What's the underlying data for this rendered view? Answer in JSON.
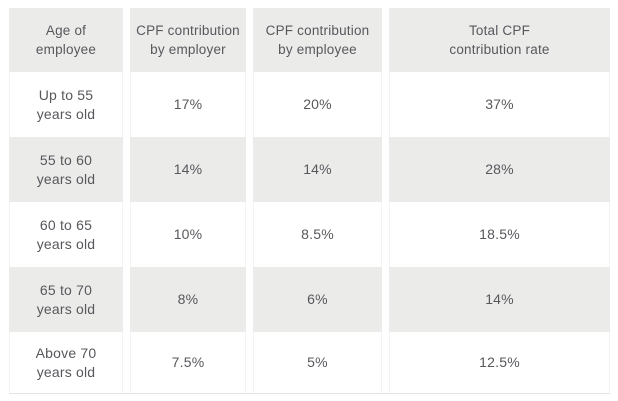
{
  "colors": {
    "page_background": "#ffffff",
    "cell_gray": "#ebebea",
    "text": "#57585c",
    "white_cell_border": "#f3f3f2",
    "table_bottom_border": "#e4e4e3"
  },
  "table": {
    "headers": [
      {
        "line1": "Age of",
        "line2": "employee"
      },
      {
        "line1": "CPF contribution",
        "line2": "by employer"
      },
      {
        "line1": "CPF contribution",
        "line2": "by employee"
      },
      {
        "line1": "Total CPF",
        "line2": "contribution rate"
      }
    ],
    "rows": [
      {
        "age1": "Up to 55",
        "age2": "years old",
        "employer": "17%",
        "employee": "20%",
        "total": "37%"
      },
      {
        "age1": "55 to 60",
        "age2": "years old",
        "employer": "14%",
        "employee": "14%",
        "total": "28%"
      },
      {
        "age1": "60 to 65",
        "age2": "years old",
        "employer": "10%",
        "employee": "8.5%",
        "total": "18.5%"
      },
      {
        "age1": "65 to 70",
        "age2": "years old",
        "employer": "8%",
        "employee": "6%",
        "total": "14%"
      },
      {
        "age1": "Above 70",
        "age2": "years old",
        "employer": "7.5%",
        "employee": "5%",
        "total": "12.5%"
      }
    ]
  },
  "chart_data": {
    "type": "table",
    "columns": [
      "Age of employee",
      "CPF contribution by employer",
      "CPF contribution by employee",
      "Total CPF contribution rate"
    ],
    "rows": [
      [
        "Up to 55 years old",
        "17%",
        "20%",
        "37%"
      ],
      [
        "55 to 60 years old",
        "14%",
        "14%",
        "28%"
      ],
      [
        "60 to 65 years old",
        "10%",
        "8.5%",
        "18.5%"
      ],
      [
        "65 to 70 years old",
        "8%",
        "6%",
        "14%"
      ],
      [
        "Above 70 years old",
        "7.5%",
        "5%",
        "12.5%"
      ]
    ]
  }
}
